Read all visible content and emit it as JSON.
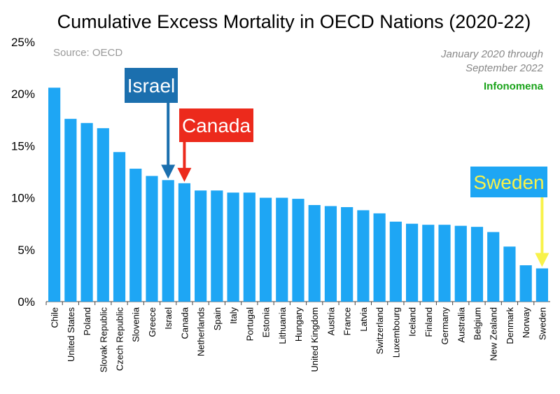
{
  "chart_data": {
    "type": "bar",
    "title": "Cumulative Excess Mortality in OECD Nations (2020-22)",
    "source": "Source: OECD",
    "period_line1": "January 2020 through",
    "period_line2": "September 2022",
    "brand": "Infonomena",
    "xlabel": "",
    "ylabel": "",
    "ylim": [
      0,
      25
    ],
    "yticks": [
      "0%",
      "5%",
      "10%",
      "15%",
      "20%",
      "25%"
    ],
    "grid": false,
    "categories": [
      "Chile",
      "United States",
      "Poland",
      "Slovak Republic",
      "Czech Republic",
      "Slovenia",
      "Greece",
      "Israel",
      "Canada",
      "Netherlands",
      "Spain",
      "Italy",
      "Portugal",
      "Estonia",
      "Lithuania",
      "Hungary",
      "United Kingdom",
      "Austria",
      "France",
      "Latvia",
      "Switzerland",
      "Luxembourg",
      "Iceland",
      "Finland",
      "Germany",
      "Australia",
      "Belgium",
      "New Zealand",
      "Denmark",
      "Norway",
      "Sweden"
    ],
    "values": [
      20.6,
      17.6,
      17.2,
      16.7,
      14.4,
      12.8,
      12.1,
      11.7,
      11.4,
      10.7,
      10.7,
      10.5,
      10.5,
      10.0,
      10.0,
      9.9,
      9.3,
      9.2,
      9.1,
      8.8,
      8.5,
      7.7,
      7.5,
      7.4,
      7.4,
      7.3,
      7.2,
      6.7,
      5.3,
      3.5,
      3.2
    ],
    "bar_color": "#1ea6f4",
    "annotations": [
      {
        "label": "Israel",
        "target": "Israel",
        "box_color": "#1b6fae",
        "text_color": "#ffffff",
        "arrow_color": "#1b6fae"
      },
      {
        "label": "Canada",
        "target": "Canada",
        "box_color": "#ec2a1c",
        "text_color": "#ffffff",
        "arrow_color": "#ec2a1c"
      },
      {
        "label": "Sweden",
        "target": "Sweden",
        "box_color": "#1ea6f4",
        "text_color": "#f8f24a",
        "arrow_color": "#f8f24a"
      }
    ]
  }
}
